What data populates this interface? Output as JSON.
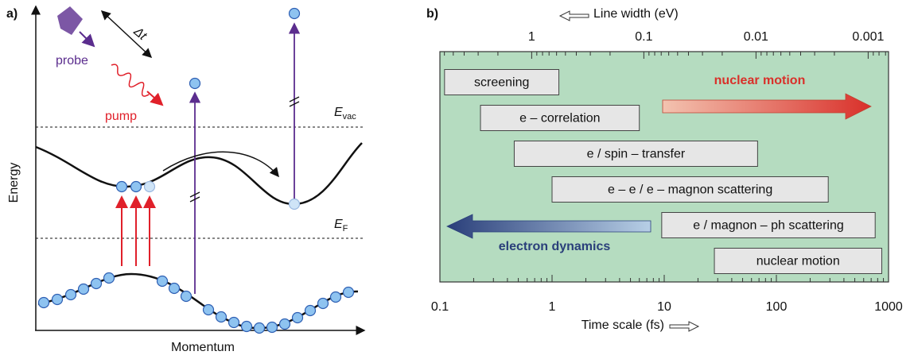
{
  "panel_a": {
    "label": "a)",
    "probe": "probe",
    "delta_t": "Δt",
    "pump": "pump",
    "e_vac": {
      "main": "E",
      "sub": "vac"
    },
    "e_f": {
      "main": "E",
      "sub": "F"
    },
    "y_axis": "Energy",
    "x_axis": "Momentum"
  },
  "chart_data": {
    "type": "range-bar",
    "panel_label": "b)",
    "xlabel": "Time scale (fs)",
    "x2label": "Line width (eV)",
    "xscale": "log",
    "xlim": [
      0.1,
      1000
    ],
    "xticks": [
      0.1,
      1,
      10,
      100,
      1000
    ],
    "x2lim": [
      6.58,
      0.000658
    ],
    "x2ticks": [
      1,
      0.1,
      0.01,
      0.001
    ],
    "categories": [
      "screening",
      "e – correlation",
      "e / spin – transfer",
      "e – e / e – magnon scattering",
      "e / magnon – ph scattering",
      "nuclear motion"
    ],
    "starts": [
      0.11,
      0.23,
      0.46,
      1.0,
      9.5,
      28
    ],
    "ends": [
      1.15,
      6.0,
      68,
      290,
      760,
      870
    ],
    "color": "#e6e6e6",
    "background": "#b5dcc0",
    "annotations": [
      {
        "text": "nuclear motion",
        "color": "#d9302a"
      },
      {
        "text": "electron dynamics",
        "color": "#2a3f7a"
      }
    ]
  }
}
